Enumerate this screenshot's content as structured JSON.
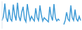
{
  "chart_data": {
    "type": "line",
    "values": [
      30,
      45,
      92,
      40,
      25,
      70,
      35,
      28,
      88,
      50,
      30,
      95,
      45,
      28,
      60,
      80,
      35,
      25,
      90,
      55,
      30,
      45,
      35,
      28,
      75,
      40,
      30,
      85,
      50,
      28,
      40,
      35,
      30,
      25,
      80,
      45,
      30,
      90,
      40,
      28,
      35,
      30,
      null,
      null,
      15,
      30,
      60,
      35,
      28,
      85,
      40,
      30,
      70,
      35,
      28,
      45,
      30
    ],
    "color": "#3d9ad6",
    "ylim": [
      0,
      100
    ],
    "tick_labels": false
  }
}
